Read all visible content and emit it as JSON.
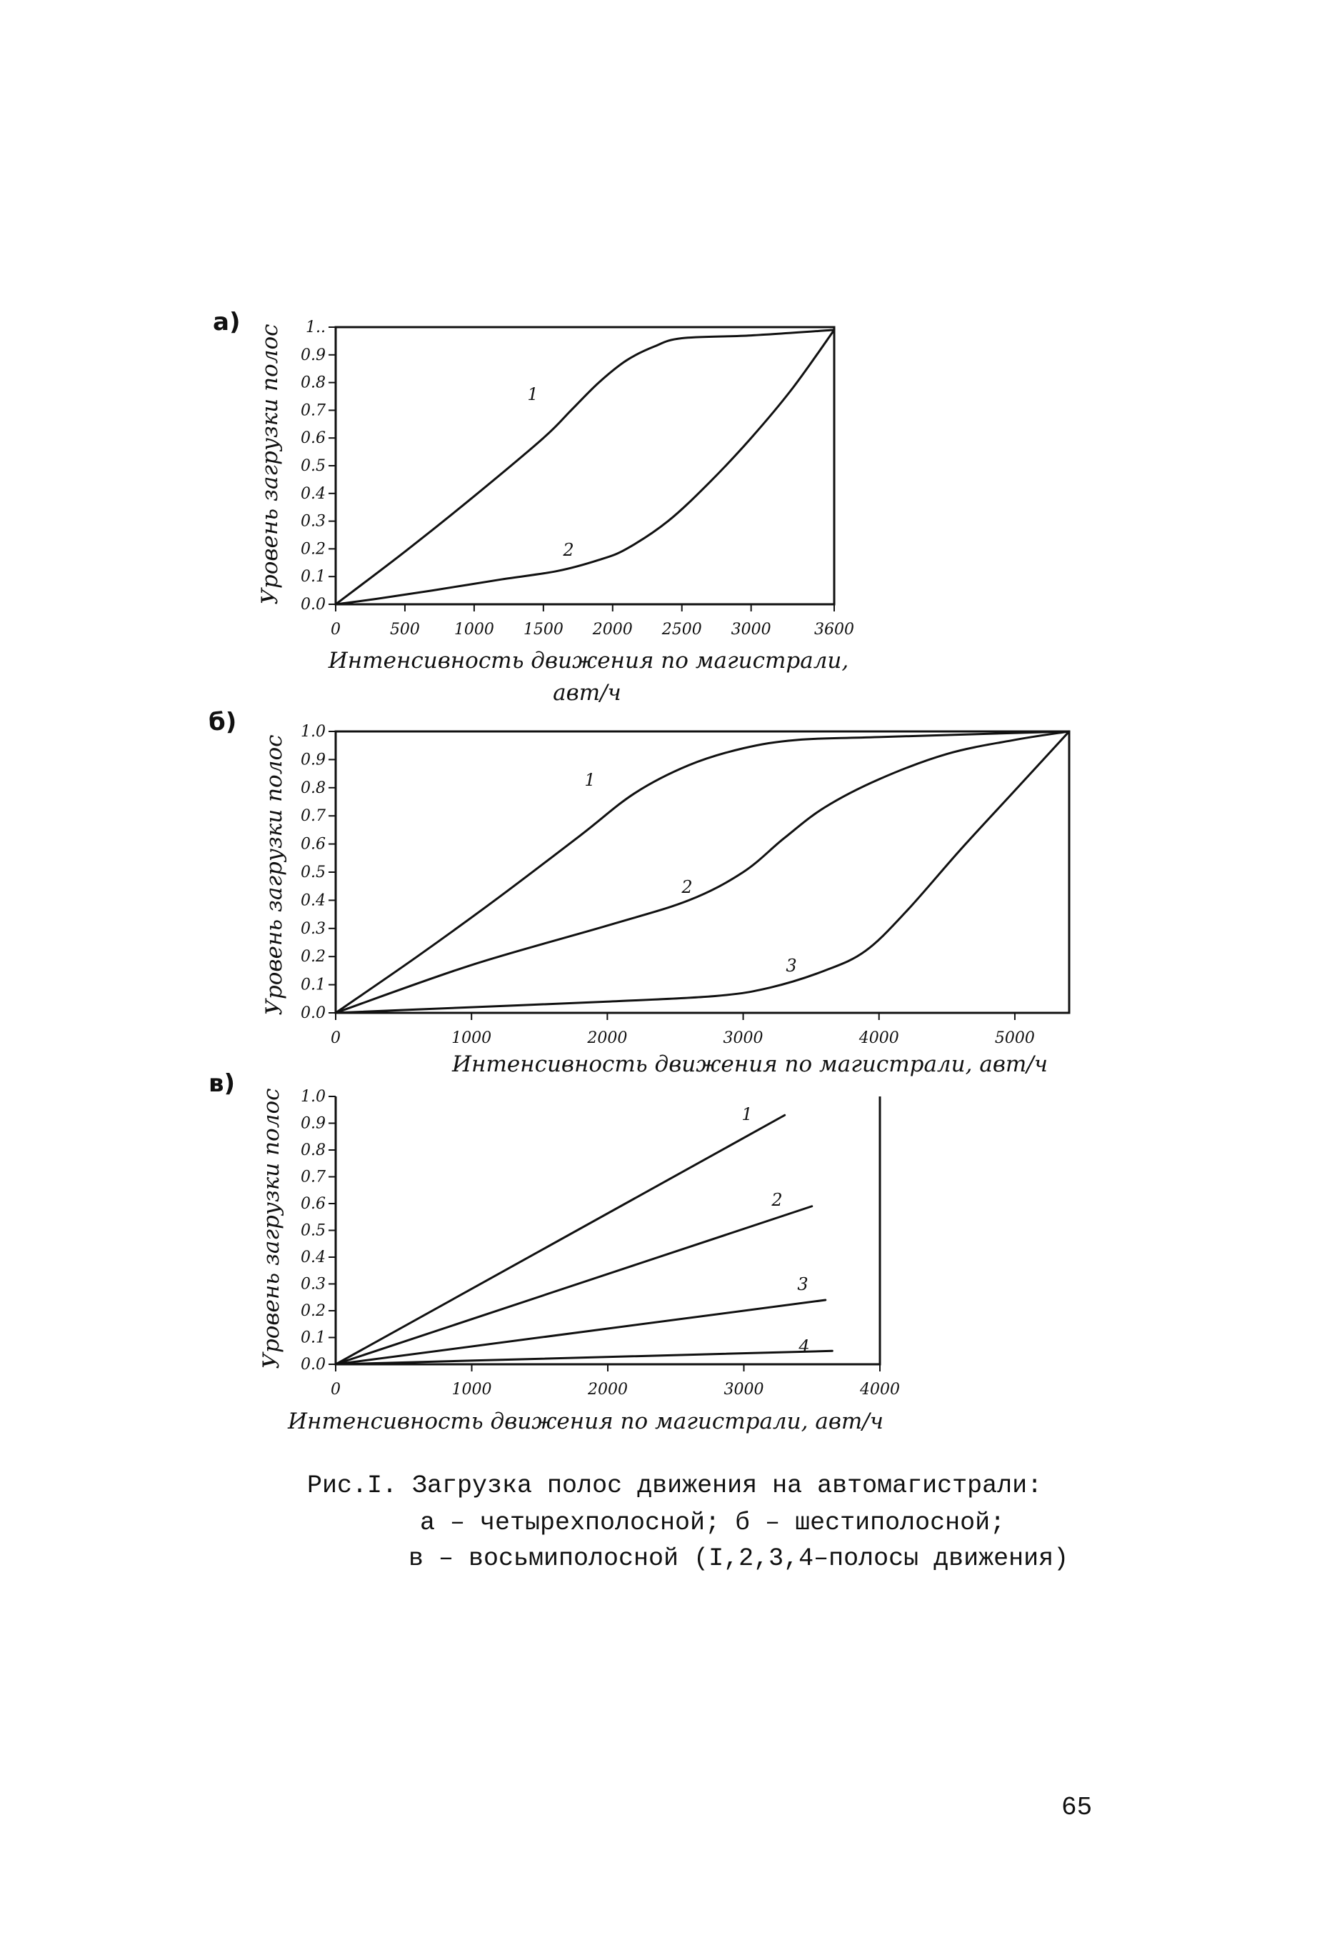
{
  "chart_data": [
    {
      "type": "line",
      "panel_label": "а)",
      "xlabel": "Интенсивность движения по магистрали, авт/ч",
      "ylabel": "Уровень загрузки полос",
      "xlim": [
        0,
        3600
      ],
      "ylim": [
        0,
        1.0
      ],
      "x_ticks": [
        "0",
        "500",
        "1000",
        "1500",
        "2000",
        "2500",
        "3000",
        "3600"
      ],
      "y_ticks": [
        "0.0",
        "0.1",
        "0.2",
        "0.3",
        "0.4",
        "0.5",
        "0.6",
        "0.7",
        "0.8",
        "0.9",
        "1.."
      ],
      "grid": false,
      "series": [
        {
          "name": "1",
          "points": [
            [
              0,
              0
            ],
            [
              500,
              0.19
            ],
            [
              1000,
              0.39
            ],
            [
              1500,
              0.6
            ],
            [
              1700,
              0.7
            ],
            [
              1900,
              0.8
            ],
            [
              2100,
              0.88
            ],
            [
              2300,
              0.93
            ],
            [
              2500,
              0.96
            ],
            [
              3000,
              0.97
            ],
            [
              3600,
              0.99
            ]
          ]
        },
        {
          "name": "2",
          "points": [
            [
              0,
              0
            ],
            [
              300,
              0.02
            ],
            [
              700,
              0.05
            ],
            [
              1200,
              0.09
            ],
            [
              1600,
              0.12
            ],
            [
              1900,
              0.16
            ],
            [
              2100,
              0.2
            ],
            [
              2400,
              0.3
            ],
            [
              2700,
              0.44
            ],
            [
              3000,
              0.6
            ],
            [
              3300,
              0.78
            ],
            [
              3600,
              0.99
            ]
          ]
        }
      ]
    },
    {
      "type": "line",
      "panel_label": "б)",
      "xlabel": "Интенсивность движения по магистрали, авт/ч",
      "ylabel": "Уровень загрузки полос",
      "xlim": [
        0,
        5400
      ],
      "ylim": [
        0,
        1.0
      ],
      "x_ticks": [
        "0",
        "1000",
        "2000",
        "3000",
        "4000",
        "5000"
      ],
      "y_ticks": [
        "0.0",
        "0.1",
        "0.2",
        "0.3",
        "0.4",
        "0.5",
        "0.6",
        "0.7",
        "0.8",
        "0.9",
        "1.0"
      ],
      "grid": false,
      "series": [
        {
          "name": "1",
          "points": [
            [
              0,
              0
            ],
            [
              600,
              0.2
            ],
            [
              1200,
              0.41
            ],
            [
              1800,
              0.63
            ],
            [
              2200,
              0.78
            ],
            [
              2600,
              0.88
            ],
            [
              3000,
              0.94
            ],
            [
              3400,
              0.97
            ],
            [
              4000,
              0.98
            ],
            [
              5400,
              1.0
            ]
          ]
        },
        {
          "name": "2",
          "points": [
            [
              0,
              0
            ],
            [
              1000,
              0.17
            ],
            [
              2000,
              0.31
            ],
            [
              2600,
              0.4
            ],
            [
              3000,
              0.5
            ],
            [
              3300,
              0.62
            ],
            [
              3600,
              0.73
            ],
            [
              4000,
              0.83
            ],
            [
              4500,
              0.92
            ],
            [
              5000,
              0.97
            ],
            [
              5400,
              1.0
            ]
          ]
        },
        {
          "name": "3",
          "points": [
            [
              0,
              0
            ],
            [
              1000,
              0.02
            ],
            [
              2000,
              0.04
            ],
            [
              2800,
              0.06
            ],
            [
              3200,
              0.09
            ],
            [
              3600,
              0.15
            ],
            [
              3900,
              0.22
            ],
            [
              4200,
              0.36
            ],
            [
              4600,
              0.58
            ],
            [
              5000,
              0.79
            ],
            [
              5400,
              1.0
            ]
          ]
        }
      ]
    },
    {
      "type": "line",
      "panel_label": "в)",
      "xlabel": "Интенсивность движения по магистрали, авт/ч",
      "ylabel": "Уровень загрузки полос",
      "xlim": [
        0,
        4000
      ],
      "ylim": [
        0,
        1.0
      ],
      "x_ticks": [
        "0",
        "1000",
        "2000",
        "3000",
        "4000"
      ],
      "y_ticks": [
        "0.0",
        "0.1",
        "0.2",
        "0.3",
        "0.4",
        "0.5",
        "0.6",
        "0.7",
        "0.8",
        "0.9",
        "1.0"
      ],
      "grid": false,
      "series": [
        {
          "name": "1",
          "points": [
            [
              0,
              0
            ],
            [
              3300,
              0.93
            ]
          ]
        },
        {
          "name": "2",
          "points": [
            [
              0,
              0
            ],
            [
              3500,
              0.59
            ]
          ]
        },
        {
          "name": "3",
          "points": [
            [
              0,
              0
            ],
            [
              3600,
              0.24
            ]
          ]
        },
        {
          "name": "4",
          "points": [
            [
              0,
              0
            ],
            [
              3650,
              0.05
            ]
          ]
        }
      ]
    }
  ],
  "caption": {
    "line1": "Рис.I. Загрузка полос движения на автомагистрали:",
    "line2": "а – четырехполосной; б – шестиполосной;",
    "line3": "в – восьмиполосной (I,2,3,4–полосы движения)"
  },
  "page_number": "65"
}
